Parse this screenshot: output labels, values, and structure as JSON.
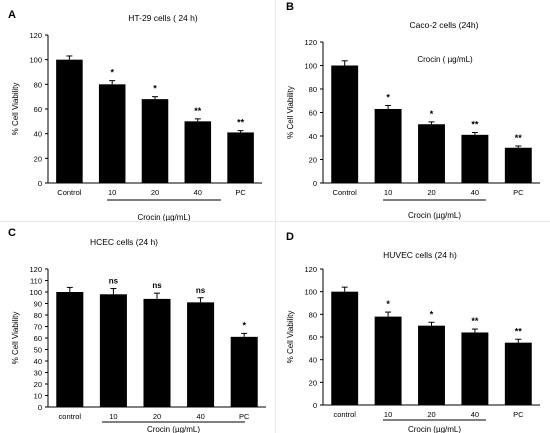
{
  "colors": {
    "bar": "#000000",
    "axis": "#000000",
    "text": "#000000"
  },
  "chart_data": [
    {
      "panel": "A",
      "type": "bar",
      "title": "HT-29 cells ( 24 h)",
      "title_position": "top",
      "ylabel": "% Cell Viability",
      "xgroup_label": "Crocin  (µg/mL)",
      "ylim": [
        0,
        120
      ],
      "yticks": [
        0,
        20,
        40,
        60,
        80,
        100,
        120
      ],
      "categories": [
        "Control",
        "10",
        "20",
        "40",
        "PC"
      ],
      "values": [
        100,
        80,
        68,
        50,
        41
      ],
      "errors": [
        3,
        3,
        2,
        2,
        1.5
      ],
      "significance": [
        "",
        "*",
        "*",
        "**",
        "**"
      ]
    },
    {
      "panel": "B",
      "type": "bar",
      "title": "Caco-2 cells (24h)",
      "title_position": "top",
      "inner_label": "Crocin ( µg/mL)",
      "ylabel": "% Cell Viability",
      "xgroup_label": "Crocin  (µg/mL)",
      "ylim": [
        0,
        120
      ],
      "yticks": [
        0,
        20,
        40,
        60,
        80,
        100,
        120
      ],
      "categories": [
        "Control",
        "10",
        "20",
        "40",
        "PC"
      ],
      "values": [
        100,
        63,
        50,
        41,
        30
      ],
      "errors": [
        4,
        3,
        2,
        2,
        1.5
      ],
      "significance": [
        "",
        "*",
        "*",
        "**",
        "**"
      ]
    },
    {
      "panel": "C",
      "type": "bar",
      "title": "HCEC cells (24 h)",
      "title_position": "top",
      "ylabel": "% Cell Viability",
      "xgroup_label": "Crocin  (µg/mL)",
      "ylim": [
        0,
        120
      ],
      "yticks": [
        0,
        10,
        20,
        30,
        40,
        50,
        60,
        70,
        80,
        90,
        100,
        110,
        120
      ],
      "categories": [
        "control",
        "10",
        "20",
        "40",
        "PC"
      ],
      "values": [
        100,
        98,
        94,
        91,
        61
      ],
      "errors": [
        4,
        5,
        5,
        4,
        3
      ],
      "significance": [
        "",
        "ns",
        "ns",
        "ns",
        "*"
      ]
    },
    {
      "panel": "D",
      "type": "bar",
      "title": "HUVEC cells (24 h)",
      "title_position": "top",
      "ylabel": "% Cell Viability",
      "xgroup_label": "Crocin  (µg/mL)",
      "ylim": [
        0,
        120
      ],
      "yticks": [
        0,
        20,
        40,
        60,
        80,
        100,
        120
      ],
      "categories": [
        "control",
        "10",
        "20",
        "40",
        "PC"
      ],
      "values": [
        100,
        78,
        70,
        64,
        55
      ],
      "errors": [
        4,
        4,
        3,
        3,
        3
      ],
      "significance": [
        "",
        "*",
        "*",
        "**",
        "**"
      ]
    }
  ]
}
